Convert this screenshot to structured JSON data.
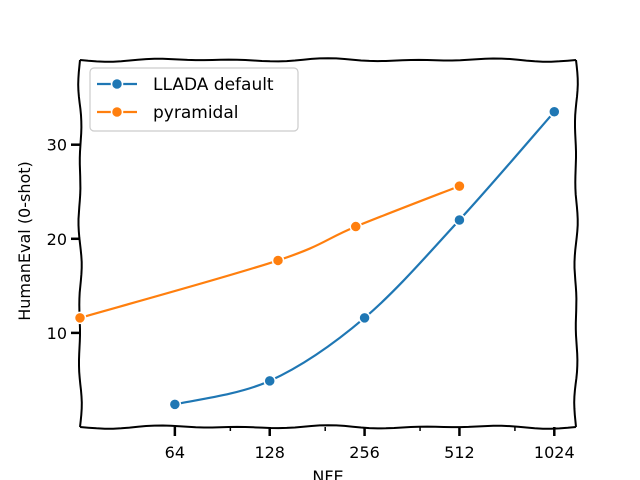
{
  "chart_data": {
    "type": "line",
    "title": "",
    "xlabel": "NFE",
    "ylabel": "HumanEval (0-shot)",
    "x_scale": "log2",
    "xlim": [
      32,
      1200
    ],
    "ylim": [
      0,
      39
    ],
    "x_ticks": [
      64,
      128,
      256,
      512,
      1024
    ],
    "x_tick_labels": [
      "64",
      "128",
      "256",
      "512",
      "1024"
    ],
    "y_ticks": [
      10,
      20,
      30
    ],
    "y_tick_labels": [
      "10",
      "20",
      "30"
    ],
    "legend_position": "top-left",
    "grid": false,
    "series": [
      {
        "name": "LLADA default",
        "color": "#1f77b4",
        "x": [
          64,
          128,
          256,
          512,
          1024
        ],
        "y": [
          2.4,
          4.9,
          11.6,
          22.0,
          33.5
        ]
      },
      {
        "name": "pyramidal",
        "color": "#ff7f0e",
        "x": [
          32,
          136,
          240,
          512
        ],
        "y": [
          11.6,
          17.7,
          21.3,
          25.6
        ]
      }
    ]
  }
}
